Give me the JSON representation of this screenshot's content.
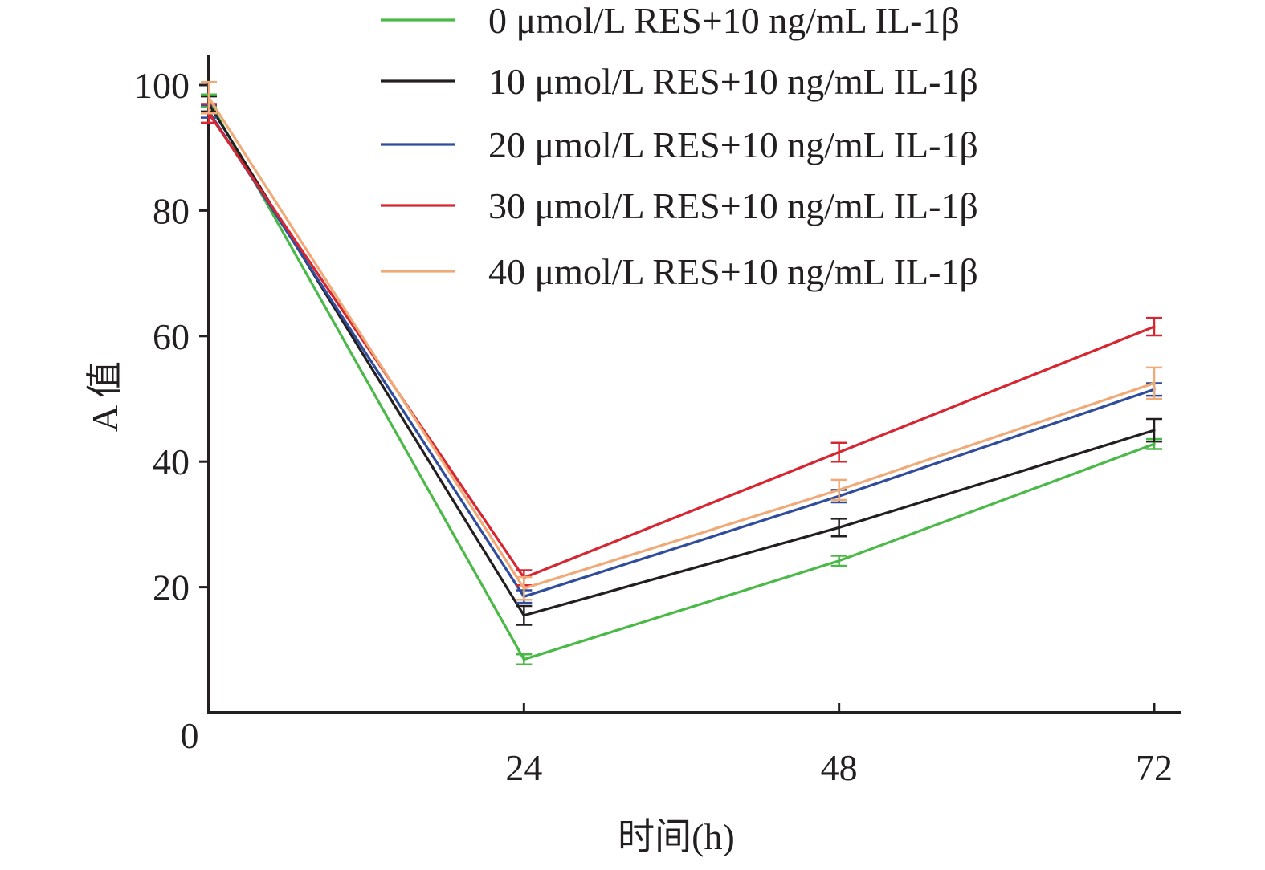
{
  "chart_data": {
    "type": "line",
    "xlabel": "时间(h)",
    "ylabel": "A 值",
    "x": [
      0,
      24,
      48,
      72
    ],
    "x_tick_labels": [
      "24",
      "48",
      "72"
    ],
    "x_ticks": [
      24,
      48,
      72
    ],
    "y_ticks": [
      20,
      40,
      60,
      80,
      100
    ],
    "y_tick_labels": [
      "20",
      "40",
      "60",
      "80",
      "100"
    ],
    "origin_label": "0",
    "xlim": [
      0,
      74
    ],
    "ylim": [
      0,
      105
    ],
    "grid": false,
    "legend_position": "top",
    "series": [
      {
        "name": "0 μmol/L RES+10 ng/mL IL-1β",
        "color": "#4ab948",
        "values": [
          97.5,
          8.5,
          24.2,
          42.8
        ],
        "errors": [
          1.0,
          0.8,
          0.8,
          0.8
        ]
      },
      {
        "name": "10 μmol/L RES+10 ng/mL IL-1β",
        "color": "#231f20",
        "values": [
          97.0,
          15.5,
          29.5,
          45.0
        ],
        "errors": [
          1.2,
          1.5,
          1.4,
          1.8
        ]
      },
      {
        "name": "20 μmol/L RES+10 ng/mL IL-1β",
        "color": "#2f4d9c",
        "values": [
          95.8,
          18.5,
          34.5,
          51.5
        ],
        "errors": [
          1.0,
          1.0,
          1.0,
          1.0
        ]
      },
      {
        "name": "30 μmol/L RES+10 ng/mL IL-1β",
        "color": "#d62631",
        "values": [
          95.5,
          21.5,
          41.5,
          61.5
        ],
        "errors": [
          1.5,
          1.2,
          1.5,
          1.4
        ]
      },
      {
        "name": "40 μmol/L RES+10 ng/mL IL-1β",
        "color": "#f0aa78",
        "values": [
          98.0,
          19.8,
          35.5,
          52.5
        ],
        "errors": [
          2.5,
          1.8,
          1.6,
          2.5
        ]
      }
    ]
  }
}
